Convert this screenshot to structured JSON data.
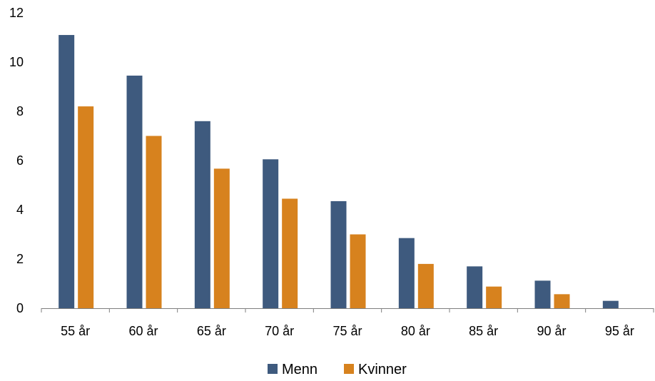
{
  "chart_data": {
    "type": "bar",
    "categories": [
      "55 år",
      "60 år",
      "65 år",
      "70 år",
      "75 år",
      "80 år",
      "85 år",
      "90 år",
      "95 år"
    ],
    "series": [
      {
        "name": "Menn",
        "color": "#3e5a7e",
        "values": [
          11.1,
          9.45,
          7.6,
          6.05,
          4.35,
          2.85,
          1.7,
          1.12,
          0.3
        ]
      },
      {
        "name": "Kvinner",
        "color": "#d7821e",
        "values": [
          8.2,
          7.0,
          5.67,
          4.45,
          3.0,
          1.8,
          0.88,
          0.57,
          null
        ]
      }
    ],
    "yticks": [
      "0",
      "2",
      "4",
      "6",
      "8",
      "10",
      "12"
    ],
    "ylim": [
      0,
      12
    ],
    "grid": false,
    "legend_position": "bottom"
  }
}
